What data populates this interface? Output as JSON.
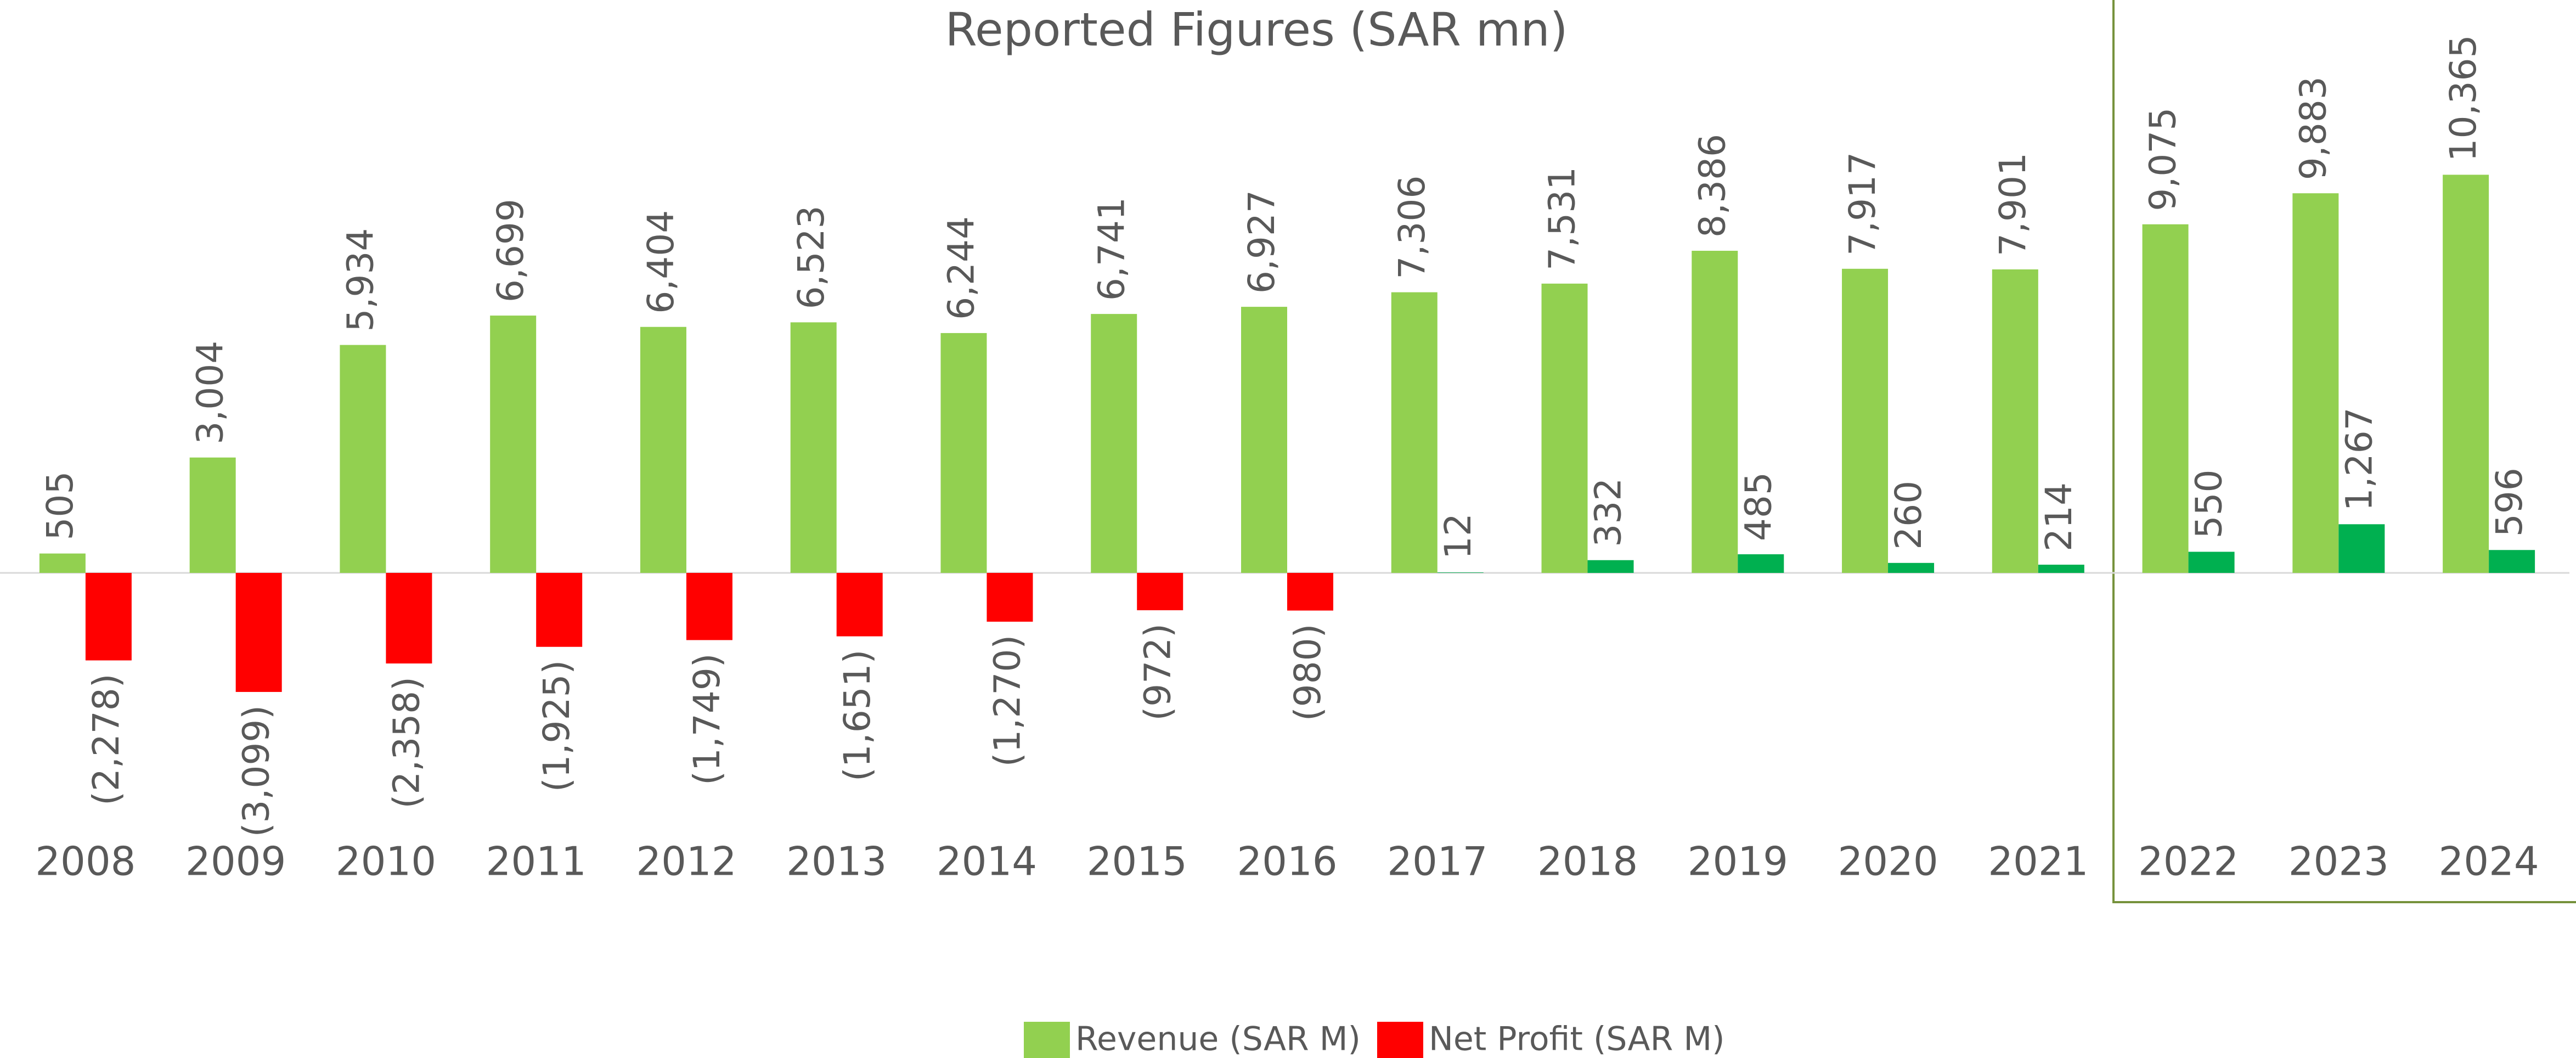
{
  "chart_data": {
    "type": "bar",
    "title": "Reported Figures (SAR mn)",
    "categories": [
      "2008",
      "2009",
      "2010",
      "2011",
      "2012",
      "2013",
      "2014",
      "2015",
      "2016",
      "2017",
      "2018",
      "2019",
      "2020",
      "2021",
      "2022",
      "2023",
      "2024"
    ],
    "series": [
      {
        "name": "Revenue (SAR M)",
        "color": "#92d050",
        "values": [
          505,
          3004,
          5934,
          6699,
          6404,
          6523,
          6244,
          6741,
          6927,
          7306,
          7531,
          8386,
          7917,
          7901,
          9075,
          9883,
          10365
        ],
        "value_labels": [
          "505",
          "3,004",
          "5,934",
          "6,699",
          "6,404",
          "6,523",
          "6,244",
          "6,741",
          "6,927",
          "7,306",
          "7,531",
          "8,386",
          "7,917",
          "7,901",
          "9,075",
          "9,883",
          "10,365"
        ]
      },
      {
        "name": "Net Profit (SAR M)",
        "color": "#ff0000",
        "positive_color": "#00b050",
        "values": [
          -2278,
          -3099,
          -2358,
          -1925,
          -1749,
          -1651,
          -1270,
          -972,
          -980,
          12,
          332,
          485,
          260,
          214,
          550,
          1267,
          596
        ],
        "value_labels": [
          "(2,278)",
          "(3,099)",
          "(2,358)",
          "(1,925)",
          "(1,749)",
          "(1,651)",
          "(1,270)",
          "(972)",
          "(980)",
          "12",
          "332",
          "485",
          "260",
          "214",
          "550",
          "1,267",
          "596"
        ]
      }
    ],
    "ylim": [
      -8000,
      12000
    ]
  }
}
